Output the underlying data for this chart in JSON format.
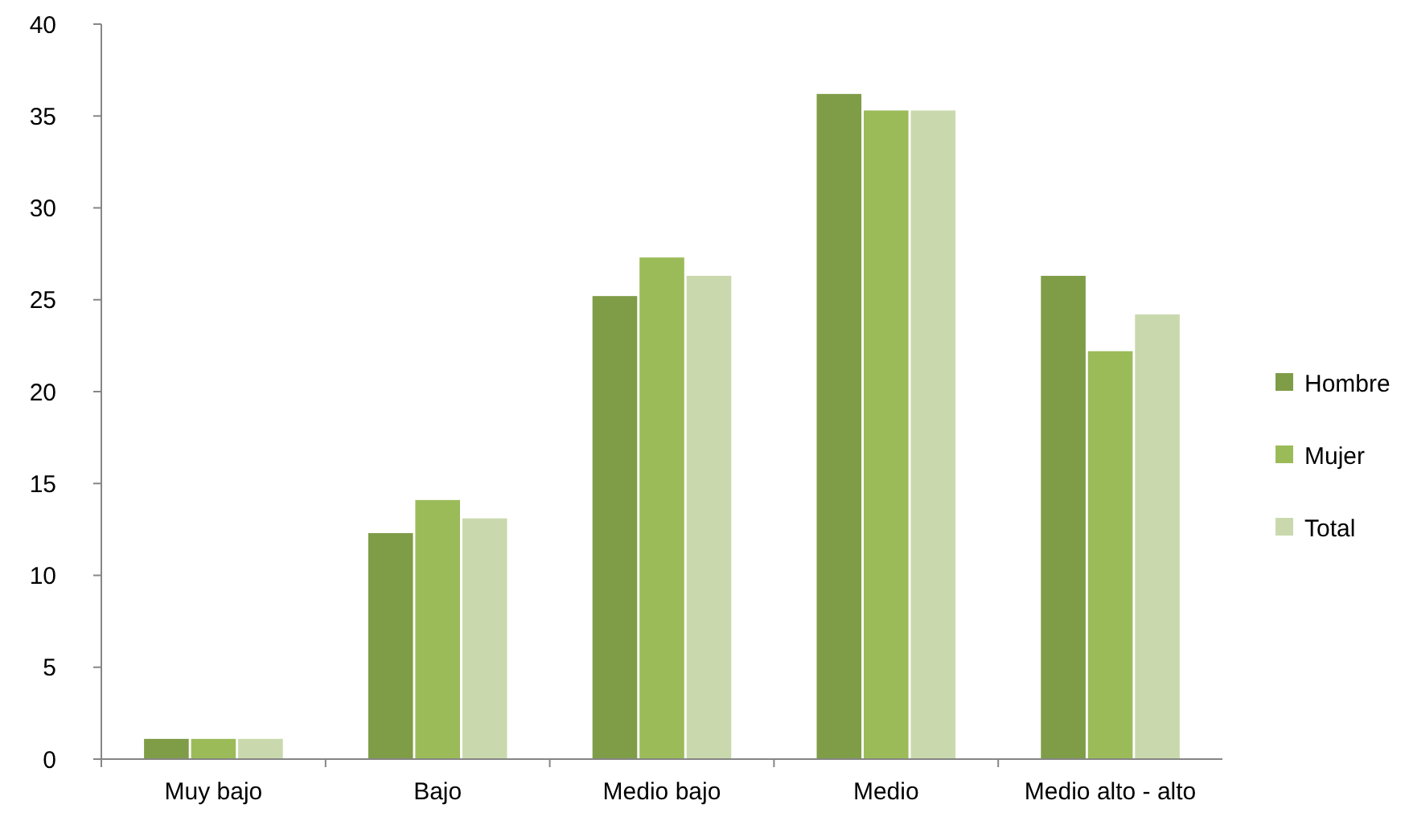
{
  "chart_data": {
    "type": "bar",
    "categories": [
      "Muy bajo",
      "Bajo",
      "Medio bajo",
      "Medio",
      "Medio alto - alto"
    ],
    "series": [
      {
        "name": "Hombre",
        "color": "#7f9c47",
        "values": [
          1.1,
          12.3,
          25.2,
          36.2,
          26.3
        ]
      },
      {
        "name": "Mujer",
        "color": "#9bbb59",
        "values": [
          1.1,
          14.1,
          27.3,
          35.3,
          22.2
        ]
      },
      {
        "name": "Total",
        "color": "#c9d9ad",
        "values": [
          1.1,
          13.1,
          26.3,
          35.3,
          24.2
        ]
      }
    ],
    "ylim": [
      0,
      40
    ],
    "yticks": [
      0,
      5,
      10,
      15,
      20,
      25,
      30,
      35,
      40
    ],
    "grid": false,
    "legend": "right"
  }
}
